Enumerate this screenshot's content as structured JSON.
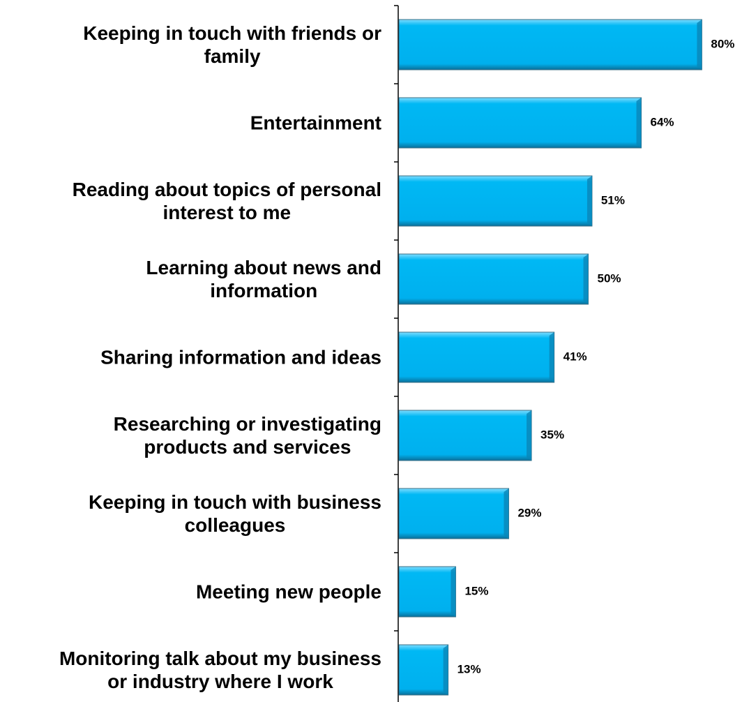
{
  "chart_data": {
    "type": "bar",
    "orientation": "horizontal",
    "categories": [
      "Keeping in touch with friends or\nfamily",
      "Entertainment",
      "Reading about topics of personal\ninterest to me",
      "Learning about news and\ninformation",
      "Sharing information and ideas",
      "Researching or investigating\nproducts and services",
      "Keeping in touch with business\ncolleagues",
      "Meeting new people",
      "Monitoring talk about my business\nor industry where I work"
    ],
    "values": [
      80,
      64,
      51,
      50,
      41,
      35,
      29,
      15,
      13
    ],
    "value_labels": [
      "80%",
      "64%",
      "51%",
      "50%",
      "41%",
      "35%",
      "29%",
      "15%",
      "13%"
    ],
    "color": "#00b8f4"
  }
}
